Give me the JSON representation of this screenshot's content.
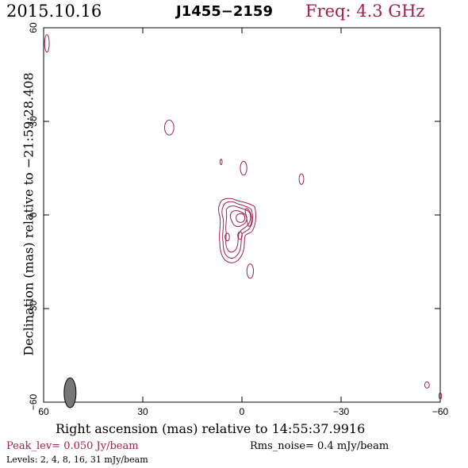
{
  "header": {
    "date": "2015.10.16",
    "source": "J1455−2159",
    "freq": "Freq: 4.3 GHz"
  },
  "footer": {
    "peak": "Peak_lev=  0.050 Jy/beam",
    "rms": "Rms_noise=  0.4 mJy/beam",
    "levels": "Levels:   2,   4,   8,  16,  31 mJy/beam"
  },
  "colors": {
    "contour": "#a0214a",
    "beam": "#777777",
    "axis": "#000000"
  },
  "chart_data": {
    "type": "contour",
    "xlabel": "Right ascension (mas) relative to 14:55:37.9916",
    "ylabel": "Declination (mas) relative to −21:59:28.408",
    "xlim": [
      60,
      -60
    ],
    "ylim": [
      -60,
      60
    ],
    "xticks": [
      60,
      30,
      0,
      -30,
      -60
    ],
    "yticks": [
      -60,
      -30,
      0,
      30,
      60
    ],
    "xtick_labels": [
      "60",
      "30",
      "0",
      "−30",
      "−60"
    ],
    "ytick_labels": [
      "−60",
      "−30",
      "0",
      "30",
      "60"
    ],
    "levels_mjy": [
      2,
      4,
      8,
      16,
      31
    ],
    "peak_jy_per_beam": 0.05,
    "rms_mjy_per_beam": 0.4,
    "beam": {
      "x": 52,
      "y": -57,
      "major": 4.8,
      "minor": 1.8,
      "pa_deg": 0
    },
    "core": {
      "x": -1,
      "y": -2
    },
    "islands": [
      {
        "x": 59,
        "y": 55,
        "rx": 0.7,
        "ry": 2.8
      },
      {
        "x": 22,
        "y": 28,
        "rx": 1.4,
        "ry": 2.4
      },
      {
        "x": 6.3,
        "y": 17,
        "rx": 0.3,
        "ry": 0.9
      },
      {
        "x": -0.5,
        "y": 15,
        "rx": 1.0,
        "ry": 2.2
      },
      {
        "x": -18,
        "y": 11.5,
        "rx": 0.7,
        "ry": 1.7
      },
      {
        "x": -2.5,
        "y": -18,
        "rx": 1.0,
        "ry": 2.3
      },
      {
        "x": -56,
        "y": -54.5,
        "rx": 0.7,
        "ry": 1.0
      },
      {
        "x": -60,
        "y": -58,
        "rx": 0.4,
        "ry": 1.0
      }
    ]
  }
}
